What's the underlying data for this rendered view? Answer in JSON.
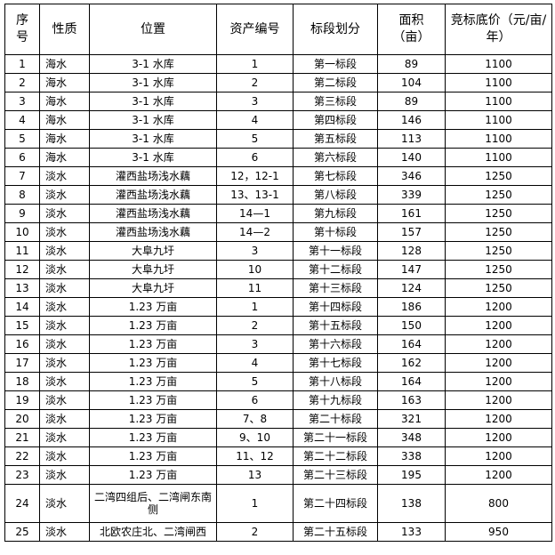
{
  "headers": [
    "序号",
    "性质",
    "位置",
    "资产编号",
    "标段划分",
    "面积（亩）",
    "竞标底价（元/亩/年）"
  ],
  "rows": [
    [
      "1",
      "海水",
      "3-1 水库",
      "1",
      "第一标段",
      "89",
      "1100"
    ],
    [
      "2",
      "海水",
      "3-1 水库",
      "2",
      "第二标段",
      "104",
      "1100"
    ],
    [
      "3",
      "海水",
      "3-1 水库",
      "3",
      "第三标段",
      "89",
      "1100"
    ],
    [
      "4",
      "海水",
      "3-1 水库",
      "4",
      "第四标段",
      "146",
      "1100"
    ],
    [
      "5",
      "海水",
      "3-1 水库",
      "5",
      "第五标段",
      "113",
      "1100"
    ],
    [
      "6",
      "海水",
      "3-1 水库",
      "6",
      "第六标段",
      "140",
      "1100"
    ],
    [
      "7",
      "淡水",
      "灌西盐场浅水藕",
      "12，12-1",
      "第七标段",
      "346",
      "1250"
    ],
    [
      "8",
      "淡水",
      "灌西盐场浅水藕",
      "13、13-1",
      "第八标段",
      "339",
      "1250"
    ],
    [
      "9",
      "淡水",
      "灌西盐场浅水藕",
      "14—1",
      "第九标段",
      "161",
      "1250"
    ],
    [
      "10",
      "淡水",
      "灌西盐场浅水藕",
      "14—2",
      "第十标段",
      "157",
      "1250"
    ],
    [
      "11",
      "淡水",
      "大阜九圩",
      "3",
      "第十一标段",
      "128",
      "1250"
    ],
    [
      "12",
      "淡水",
      "大阜九圩",
      "10",
      "第十二标段",
      "147",
      "1250"
    ],
    [
      "13",
      "淡水",
      "大阜九圩",
      "11",
      "第十三标段",
      "124",
      "1250"
    ],
    [
      "14",
      "淡水",
      "1.23 万亩",
      "1",
      "第十四标段",
      "186",
      "1200"
    ],
    [
      "15",
      "淡水",
      "1.23 万亩",
      "2",
      "第十五标段",
      "150",
      "1200"
    ],
    [
      "16",
      "淡水",
      "1.23 万亩",
      "3",
      "第十六标段",
      "164",
      "1200"
    ],
    [
      "17",
      "淡水",
      "1.23 万亩",
      "4",
      "第十七标段",
      "162",
      "1200"
    ],
    [
      "18",
      "淡水",
      "1.23 万亩",
      "5",
      "第十八标段",
      "164",
      "1200"
    ],
    [
      "19",
      "淡水",
      "1.23 万亩",
      "6",
      "第十九标段",
      "163",
      "1200"
    ],
    [
      "20",
      "淡水",
      "1.23 万亩",
      "7、8",
      "第二十标段",
      "321",
      "1200"
    ],
    [
      "21",
      "淡水",
      "1.23 万亩",
      "9、10",
      "第二十一标段",
      "348",
      "1200"
    ],
    [
      "22",
      "淡水",
      "1.23 万亩",
      "11、12",
      "第二十二标段",
      "338",
      "1200"
    ],
    [
      "23",
      "淡水",
      "1.23 万亩",
      "13",
      "第二十三标段",
      "195",
      "1200"
    ],
    [
      "24",
      "淡水",
      "二湾四组后、二湾闸东南侧",
      "1",
      "第二十四标段",
      "138",
      "800"
    ],
    [
      "25",
      "淡水",
      "北欧农庄北、二湾闸西",
      "2",
      "第二十五标段",
      "133",
      "950"
    ]
  ]
}
